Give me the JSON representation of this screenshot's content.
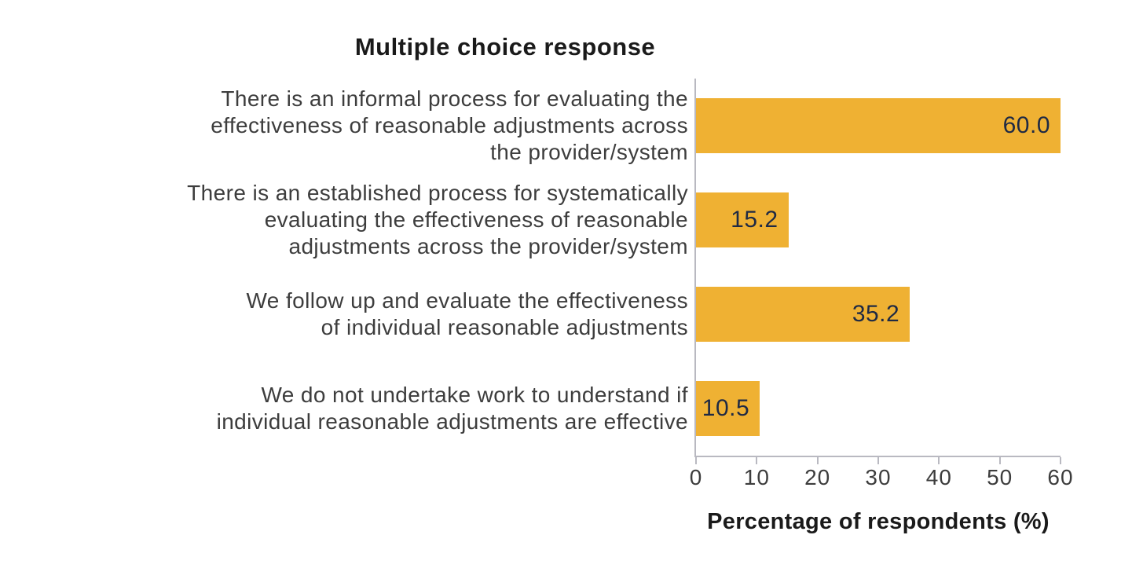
{
  "chart_data": {
    "type": "bar",
    "orientation": "horizontal",
    "title": "Multiple choice response",
    "xlabel": "Percentage of respondents (%)",
    "categories": [
      "There is an informal process for evaluating the\neffectiveness of reasonable adjustments across\nthe provider/system",
      "There is an established process for systematically\nevaluating the effectiveness of reasonable\nadjustments across the provider/system",
      "We follow up and evaluate the effectiveness\nof individual reasonable adjustments",
      "We do not undertake work to understand if\nindividual reasonable adjustments are effective"
    ],
    "values": [
      60.0,
      15.2,
      35.2,
      10.5
    ],
    "value_labels": [
      "60.0",
      "15.2",
      "35.2",
      "10.5"
    ],
    "xlim": [
      0,
      60
    ],
    "xticks": [
      0,
      10,
      20,
      30,
      40,
      50,
      60
    ],
    "bar_color": "#efb133",
    "value_label_color": "#1f2a44",
    "axis_color": "#b9b9c1",
    "grid": false,
    "legend": false
  }
}
